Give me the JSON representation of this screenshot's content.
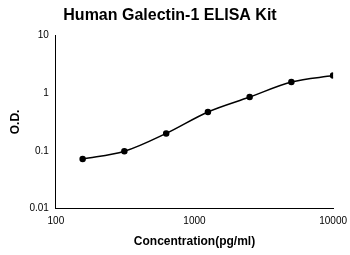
{
  "chart_data": {
    "type": "scatter",
    "title": "Human Galectin-1 ELISA Kit",
    "x_label": "Concentration(pg/ml)",
    "y_label": "O.D.",
    "x": [
      156,
      312,
      625,
      1250,
      2500,
      5000,
      10000
    ],
    "values": [
      0.072,
      0.098,
      0.2,
      0.47,
      0.85,
      1.55,
      2.0
    ],
    "color": "#000000",
    "marker": "circle",
    "line_style": "solid",
    "log": true,
    "grid": false,
    "xlim": [
      100,
      10000
    ],
    "xticks": [
      100,
      1000,
      10000
    ],
    "ylim": [
      0.01,
      10
    ],
    "yticks": [
      0.01,
      0.1,
      1,
      10
    ]
  }
}
